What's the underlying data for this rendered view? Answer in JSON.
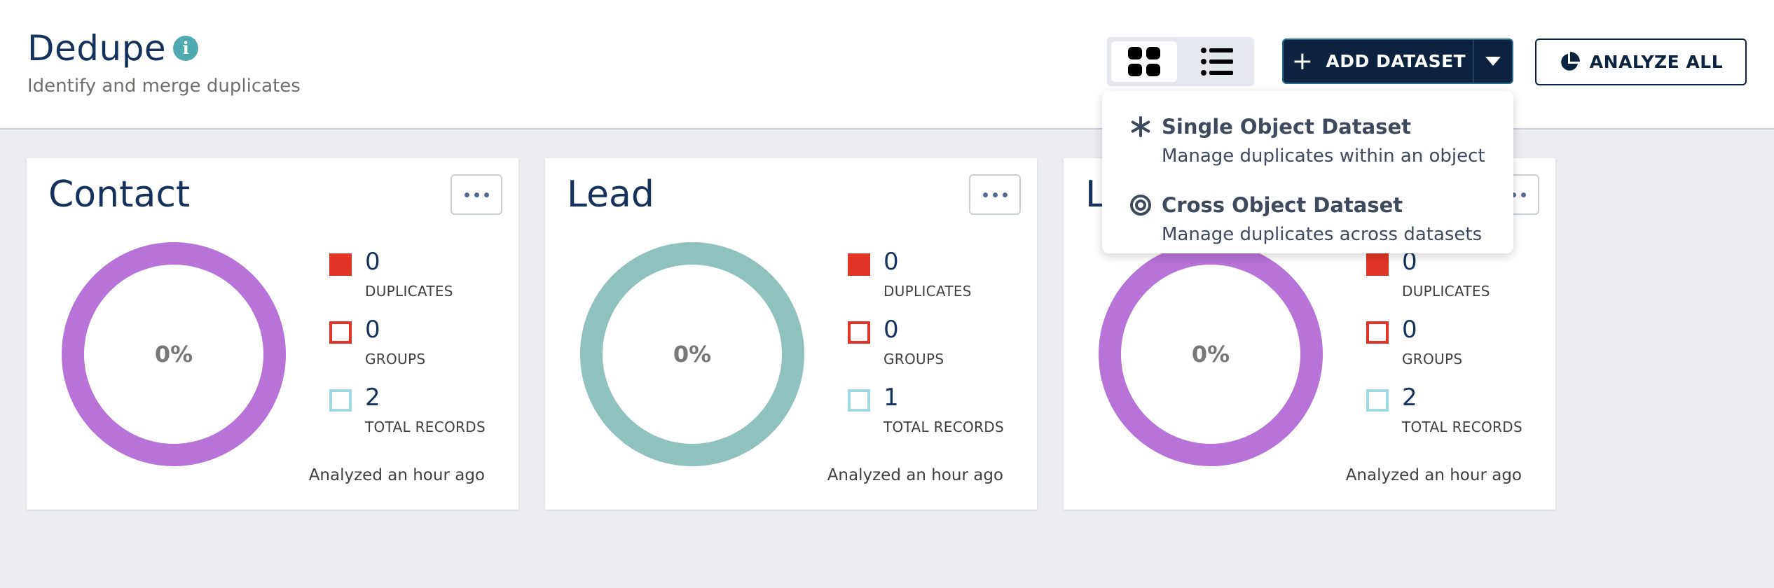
{
  "header": {
    "title": "Dedupe",
    "subtitle": "Identify and merge duplicates",
    "info_icon": "info-icon",
    "info_glyph": "i"
  },
  "toolbar": {
    "add_dataset_label": "ADD DATASET",
    "add_plus": "+",
    "analyze_all_label": "ANALYZE ALL"
  },
  "dropdown": {
    "items": [
      {
        "title": "Single Object Dataset",
        "description": "Manage duplicates within an object",
        "icon": "asterisk-icon"
      },
      {
        "title": "Cross Object Dataset",
        "description": "Manage duplicates across datasets",
        "icon": "target-icon"
      }
    ]
  },
  "colors": {
    "duplicates": "#e03426",
    "groups": "#e03426",
    "total_records": "#9fd9df",
    "donut_purple": "#b873d8",
    "donut_teal": "#8fc2bd"
  },
  "cards": [
    {
      "title": "Contact",
      "percent": "0%",
      "duplicates": "0",
      "groups": "0",
      "total_records": "2",
      "analyzed": "Analyzed an hour ago",
      "duplicates_label": "DUPLICATES",
      "groups_label": "GROUPS",
      "total_label": "TOTAL RECORDS"
    },
    {
      "title": "Lead",
      "percent": "0%",
      "duplicates": "0",
      "groups": "0",
      "total_records": "1",
      "analyzed": "Analyzed an hour ago",
      "duplicates_label": "DUPLICATES",
      "groups_label": "GROUPS",
      "total_label": "TOTAL RECORDS"
    },
    {
      "title": "L",
      "percent": "0%",
      "duplicates": "0",
      "groups": "0",
      "total_records": "2",
      "analyzed": "Analyzed an hour ago",
      "duplicates_label": "DUPLICATES",
      "groups_label": "GROUPS",
      "total_label": "TOTAL RECORDS"
    }
  ]
}
